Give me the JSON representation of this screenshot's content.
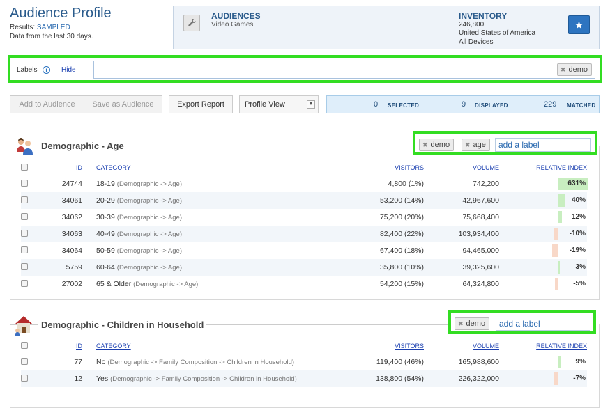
{
  "header": {
    "title": "Audience Profile",
    "results_prefix": "Results:",
    "results_value": "SAMPLED",
    "data_range": "Data from the last 30 days."
  },
  "summary": {
    "audiences_label": "AUDIENCES",
    "audiences_value": "Video Games",
    "inventory_label": "INVENTORY",
    "inventory_count": "246,800",
    "inventory_country": "United States of America",
    "inventory_devices": "All Devices",
    "star_icon": "star-icon"
  },
  "labels_bar": {
    "label": "Labels",
    "hide_link": "Hide",
    "chips": [
      "demo"
    ]
  },
  "toolbar": {
    "add_to_audience": "Add to Audience",
    "save_as_audience": "Save as Audience",
    "export_report": "Export Report",
    "profile_view": "Profile View",
    "selected_count": "0",
    "selected_label": "SELECTED",
    "displayed_count": "9",
    "displayed_label": "DISPLAYED",
    "matched_count": "229",
    "matched_label": "MATCHED"
  },
  "columns": {
    "id": "ID",
    "category": "CATEGORY",
    "visitors": "VISITORS",
    "volume": "VOLUME",
    "relative_index": "RELATIVE INDEX"
  },
  "sections": [
    {
      "title": "Demographic - Age",
      "labels": [
        "demo",
        "age"
      ],
      "add_label_placeholder": "add a label",
      "rows": [
        {
          "id": "24744",
          "category": "18-19",
          "path": "(Demographic -> Age)",
          "visitors": "4,800 (1%)",
          "volume": "742,200",
          "index": "631%",
          "index_value": 631
        },
        {
          "id": "34061",
          "category": "20-29",
          "path": "(Demographic -> Age)",
          "visitors": "53,200 (14%)",
          "volume": "42,967,600",
          "index": "40%",
          "index_value": 40
        },
        {
          "id": "34062",
          "category": "30-39",
          "path": "(Demographic -> Age)",
          "visitors": "75,200 (20%)",
          "volume": "75,668,400",
          "index": "12%",
          "index_value": 12
        },
        {
          "id": "34063",
          "category": "40-49",
          "path": "(Demographic -> Age)",
          "visitors": "82,400 (22%)",
          "volume": "103,934,400",
          "index": "-10%",
          "index_value": -10
        },
        {
          "id": "34064",
          "category": "50-59",
          "path": "(Demographic -> Age)",
          "visitors": "67,400 (18%)",
          "volume": "94,465,000",
          "index": "-19%",
          "index_value": -19
        },
        {
          "id": "5759",
          "category": "60-64",
          "path": "(Demographic -> Age)",
          "visitors": "35,800 (10%)",
          "volume": "39,325,600",
          "index": "3%",
          "index_value": 3
        },
        {
          "id": "27002",
          "category": "65 & Older",
          "path": "(Demographic -> Age)",
          "visitors": "54,200 (15%)",
          "volume": "64,324,800",
          "index": "-5%",
          "index_value": -5
        }
      ]
    },
    {
      "title": "Demographic - Children in Household",
      "labels": [
        "demo"
      ],
      "add_label_placeholder": "add a label",
      "rows": [
        {
          "id": "77",
          "category": "No",
          "path": "(Demographic -> Family Composition -> Children in Household)",
          "visitors": "119,400 (46%)",
          "volume": "165,988,600",
          "index": "9%",
          "index_value": 9
        },
        {
          "id": "12",
          "category": "Yes",
          "path": "(Demographic -> Family Composition -> Children in Household)",
          "visitors": "138,800 (54%)",
          "volume": "226,322,000",
          "index": "-7%",
          "index_value": -7
        }
      ]
    }
  ],
  "colors": {
    "accent": "#2d74c0",
    "highlight_border": "#33dd22",
    "positive_bar": "#c8eec0",
    "negative_bar": "#f8d8c8"
  }
}
